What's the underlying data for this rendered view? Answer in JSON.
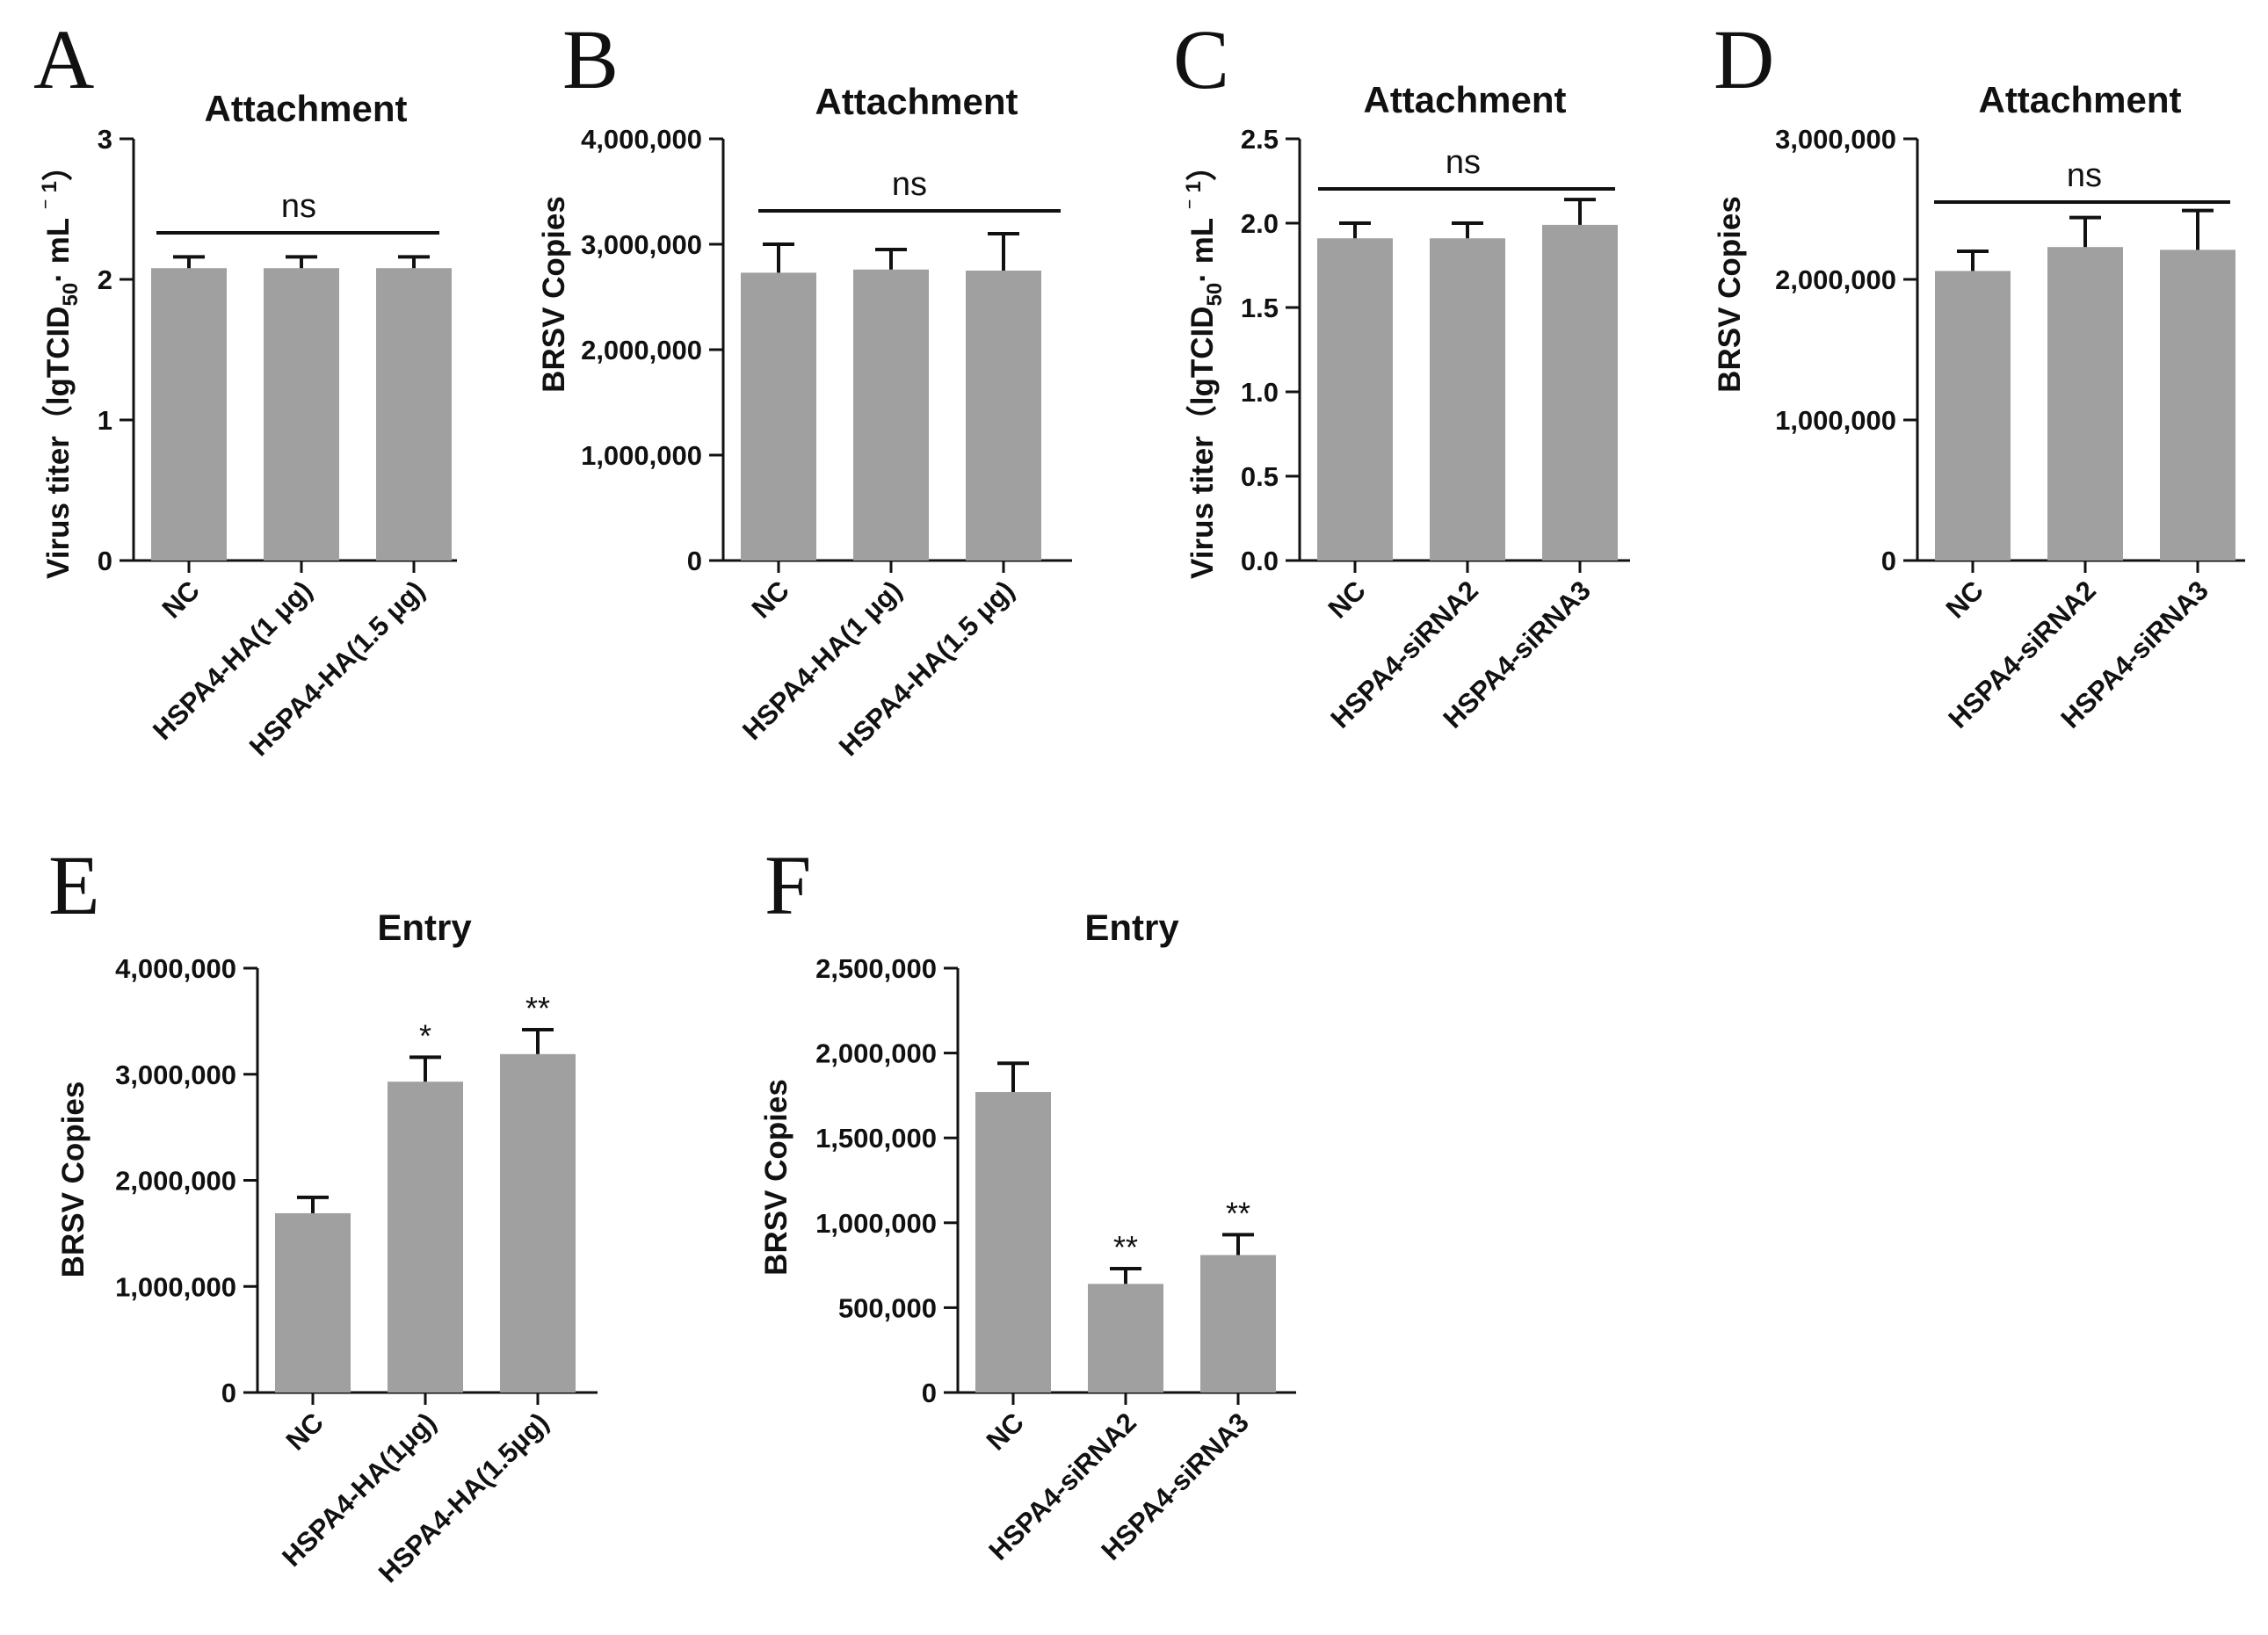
{
  "chart_data": [
    {
      "panel": "A",
      "type": "bar",
      "title": "Attachment",
      "ylabel": "Virus titer（lgTCID50· mL ⁻¹）",
      "ylabel_parts": [
        "Virus titer（lgTCID",
        "50",
        "· mL ",
        "⁻ ",
        "1",
        "）"
      ],
      "xlabel": "",
      "ylim": [
        0,
        3
      ],
      "yticks": [
        0,
        1,
        2,
        3
      ],
      "ytick_labels": [
        "0",
        "1",
        "2",
        "3"
      ],
      "categories": [
        "NC",
        "HSPA4-HA(1 μg)",
        "HSPA4-HA(1.5 μg)"
      ],
      "values": [
        2.08,
        2.08,
        2.08
      ],
      "errors": [
        0.08,
        0.08,
        0.08
      ],
      "significance": [
        "",
        "",
        ""
      ],
      "annotation": "ns"
    },
    {
      "panel": "B",
      "type": "bar",
      "title": "Attachment",
      "ylabel": "BRSV Copies",
      "ylabel_parts": [
        "BRSV Copies"
      ],
      "xlabel": "",
      "ylim": [
        0,
        4000000
      ],
      "yticks": [
        0,
        1000000,
        2000000,
        3000000,
        4000000
      ],
      "ytick_labels": [
        "0",
        "1,000,000",
        "2,000,000",
        "3,000,000",
        "4,000,000"
      ],
      "categories": [
        "NC",
        "HSPA4-HA(1 μg)",
        "HSPA4-HA(1.5 μg)"
      ],
      "values": [
        2730000,
        2760000,
        2750000
      ],
      "errors": [
        270000,
        190000,
        350000
      ],
      "significance": [
        "",
        "",
        ""
      ],
      "annotation": "ns"
    },
    {
      "panel": "C",
      "type": "bar",
      "title": "Attachment",
      "ylabel": "Virus titer（lgTCID50· mL ⁻¹）",
      "ylabel_parts": [
        "Virus titer（lgTCID",
        "50",
        "· mL ",
        "⁻ ",
        "1",
        "）"
      ],
      "xlabel": "",
      "ylim": [
        0,
        2.5
      ],
      "yticks": [
        0,
        0.5,
        1.0,
        1.5,
        2.0,
        2.5
      ],
      "ytick_labels": [
        "0.0",
        "0.5",
        "1.0",
        "1.5",
        "2.0",
        "2.5"
      ],
      "categories": [
        "NC",
        "HSPA4-siRNA2",
        "HSPA4-siRNA3"
      ],
      "values": [
        1.91,
        1.91,
        1.99
      ],
      "errors": [
        0.09,
        0.09,
        0.15
      ],
      "significance": [
        "",
        "",
        ""
      ],
      "annotation": "ns"
    },
    {
      "panel": "D",
      "type": "bar",
      "title": "Attachment",
      "ylabel": "BRSV Copies",
      "ylabel_parts": [
        "BRSV Copies"
      ],
      "xlabel": "",
      "ylim": [
        0,
        3000000
      ],
      "yticks": [
        0,
        1000000,
        2000000,
        3000000
      ],
      "ytick_labels": [
        "0",
        "1,000,000",
        "2,000,000",
        "3,000,000"
      ],
      "categories": [
        "NC",
        "HSPA4-siRNA2",
        "HSPA4-siRNA3"
      ],
      "values": [
        2060000,
        2230000,
        2210000
      ],
      "errors": [
        140000,
        210000,
        280000
      ],
      "significance": [
        "",
        "",
        ""
      ],
      "annotation": "ns"
    },
    {
      "panel": "E",
      "type": "bar",
      "title": "Entry",
      "ylabel": "BRSV Copies",
      "ylabel_parts": [
        "BRSV Copies"
      ],
      "xlabel": "",
      "ylim": [
        0,
        4000000
      ],
      "yticks": [
        0,
        1000000,
        2000000,
        3000000,
        4000000
      ],
      "ytick_labels": [
        "0",
        "1,000,000",
        "2,000,000",
        "3,000,000",
        "4,000,000"
      ],
      "categories": [
        "NC",
        "HSPA4-HA(1μg)",
        "HSPA4-HA(1.5μg)"
      ],
      "values": [
        1690000,
        2930000,
        3190000
      ],
      "errors": [
        150000,
        230000,
        230000
      ],
      "significance": [
        "",
        "*",
        "**"
      ],
      "annotation": ""
    },
    {
      "panel": "F",
      "type": "bar",
      "title": "Entry",
      "ylabel": "BRSV Copies",
      "ylabel_parts": [
        "BRSV Copies"
      ],
      "xlabel": "",
      "ylim": [
        0,
        2500000
      ],
      "yticks": [
        0,
        500000,
        1000000,
        1500000,
        2000000,
        2500000
      ],
      "ytick_labels": [
        "0",
        "500,000",
        "1,000,000",
        "1,500,000",
        "2,000,000",
        "2,500,000"
      ],
      "categories": [
        "NC",
        "HSPA4-siRNA2",
        "HSPA4-siRNA3"
      ],
      "values": [
        1770000,
        640000,
        810000
      ],
      "errors": [
        170000,
        90000,
        120000
      ],
      "significance": [
        "",
        "**",
        "**"
      ],
      "annotation": ""
    }
  ],
  "colors": {
    "bar": "#a0a0a0",
    "ink": "#111111",
    "background": "#ffffff"
  }
}
